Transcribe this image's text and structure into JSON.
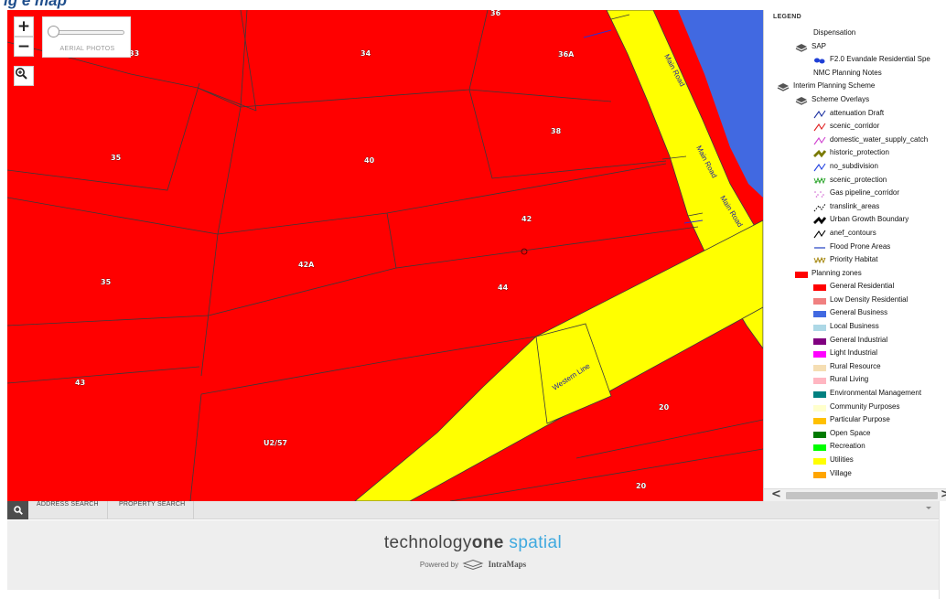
{
  "page": {
    "title_fragment": "ig  e  map"
  },
  "map": {
    "parcels": [
      "36",
      "33",
      "34",
      "36A",
      "38",
      "35",
      "40",
      "42",
      "42A",
      "35",
      "44",
      "43",
      "20",
      "U2/57",
      "20"
    ],
    "roads": [
      "Main Road",
      "Main Road",
      "Main Road",
      "Western Line"
    ],
    "colors": {
      "planning_zone": "#ff0000",
      "utilities": "#ffff00",
      "general_business": "#4169e1",
      "boundary": "#3a3a3a"
    }
  },
  "controls": {
    "zoom_in": "+",
    "zoom_out": "−",
    "aerial_label": "AERIAL PHOTOS",
    "aerial_opacity_percent": 0
  },
  "legend": {
    "title": "LEGEND",
    "items": [
      {
        "label": "Dispensation",
        "indent": 3,
        "symbol": "none"
      },
      {
        "label": "SAP",
        "indent": 2,
        "symbol": "layers-icon"
      },
      {
        "label": "F2.0 Evandale Residential Spe",
        "indent": 3,
        "symbol": "blob-icon",
        "color": "#1f3fd6"
      },
      {
        "label": "NMC Planning Notes",
        "indent": 3,
        "symbol": "none"
      },
      {
        "label": "Interim Planning Scheme",
        "indent": 1,
        "symbol": "layers-icon"
      },
      {
        "label": "Scheme Overlays",
        "indent": 2,
        "symbol": "layers-icon"
      },
      {
        "label": "attenuation Draft",
        "indent": 3,
        "symbol": "line-icon",
        "color": "#1a2fa0"
      },
      {
        "label": "scenic_corridor",
        "indent": 3,
        "symbol": "line-icon",
        "color": "#e02020"
      },
      {
        "label": "domestic_water_supply_catch",
        "indent": 3,
        "symbol": "line-icon",
        "color": "#d040d0"
      },
      {
        "label": "historic_protection",
        "indent": 3,
        "symbol": "thick-line-icon",
        "color": "#7a7a00"
      },
      {
        "label": "no_subdivision",
        "indent": 3,
        "symbol": "line-icon",
        "color": "#2040e0"
      },
      {
        "label": "scenic_protection",
        "indent": 3,
        "symbol": "hatch-icon",
        "color": "#20a020"
      },
      {
        "label": "Gas pipeline_corridor",
        "indent": 3,
        "symbol": "dots-icon",
        "color": "#d060d0"
      },
      {
        "label": "translink_areas",
        "indent": 3,
        "symbol": "dashed-line-icon",
        "color": "#000000"
      },
      {
        "label": "Urban Growth Boundary",
        "indent": 3,
        "symbol": "thick-line-icon",
        "color": "#000000"
      },
      {
        "label": "anef_contours",
        "indent": 3,
        "symbol": "line-icon",
        "color": "#000000"
      },
      {
        "label": "Flood Prone Areas",
        "indent": 3,
        "symbol": "flat-line-icon",
        "color": "#2040c0"
      },
      {
        "label": "Priority Habitat",
        "indent": 3,
        "symbol": "hatch-icon",
        "color": "#a08000"
      },
      {
        "label": "Planning zones",
        "indent": 2,
        "symbol": "swatch",
        "color": "#ff0000"
      },
      {
        "label": "General Residential",
        "indent": 3,
        "symbol": "swatch",
        "color": "#ff0000"
      },
      {
        "label": "Low Density Residential",
        "indent": 3,
        "symbol": "swatch",
        "color": "#f08080"
      },
      {
        "label": "General Business",
        "indent": 3,
        "symbol": "swatch",
        "color": "#4169e1"
      },
      {
        "label": "Local Business",
        "indent": 3,
        "symbol": "swatch",
        "color": "#add8e6"
      },
      {
        "label": "General Industrial",
        "indent": 3,
        "symbol": "swatch",
        "color": "#800080"
      },
      {
        "label": "Light Industrial",
        "indent": 3,
        "symbol": "swatch",
        "color": "#ff00ff"
      },
      {
        "label": "Rural Resource",
        "indent": 3,
        "symbol": "swatch",
        "color": "#f5deb3"
      },
      {
        "label": "Rural Living",
        "indent": 3,
        "symbol": "swatch",
        "color": "#ffb6c1"
      },
      {
        "label": "Environmental Management",
        "indent": 3,
        "symbol": "swatch",
        "color": "#008080"
      },
      {
        "label": "Community Purposes",
        "indent": 3,
        "symbol": "swatch",
        "color": "#ffffcc"
      },
      {
        "label": "Particular Purpose",
        "indent": 3,
        "symbol": "swatch",
        "color": "#ffc000"
      },
      {
        "label": "Open Space",
        "indent": 3,
        "symbol": "swatch",
        "color": "#007a00"
      },
      {
        "label": "Recreation",
        "indent": 3,
        "symbol": "swatch",
        "color": "#00ff00"
      },
      {
        "label": "Utilities",
        "indent": 3,
        "symbol": "swatch",
        "color": "#ffff00"
      },
      {
        "label": "Village",
        "indent": 3,
        "symbol": "swatch",
        "color": "#ffa500"
      }
    ],
    "scroll_left": "<",
    "scroll_right": ">"
  },
  "search": {
    "tabs": [
      "ADDRESS SEARCH",
      "PROPERTY SEARCH"
    ]
  },
  "footer": {
    "brand_part1": "technology",
    "brand_part2": "one",
    "brand_part3": " spatial",
    "powered_by": "Powered by",
    "intramaps": "IntraMaps"
  }
}
